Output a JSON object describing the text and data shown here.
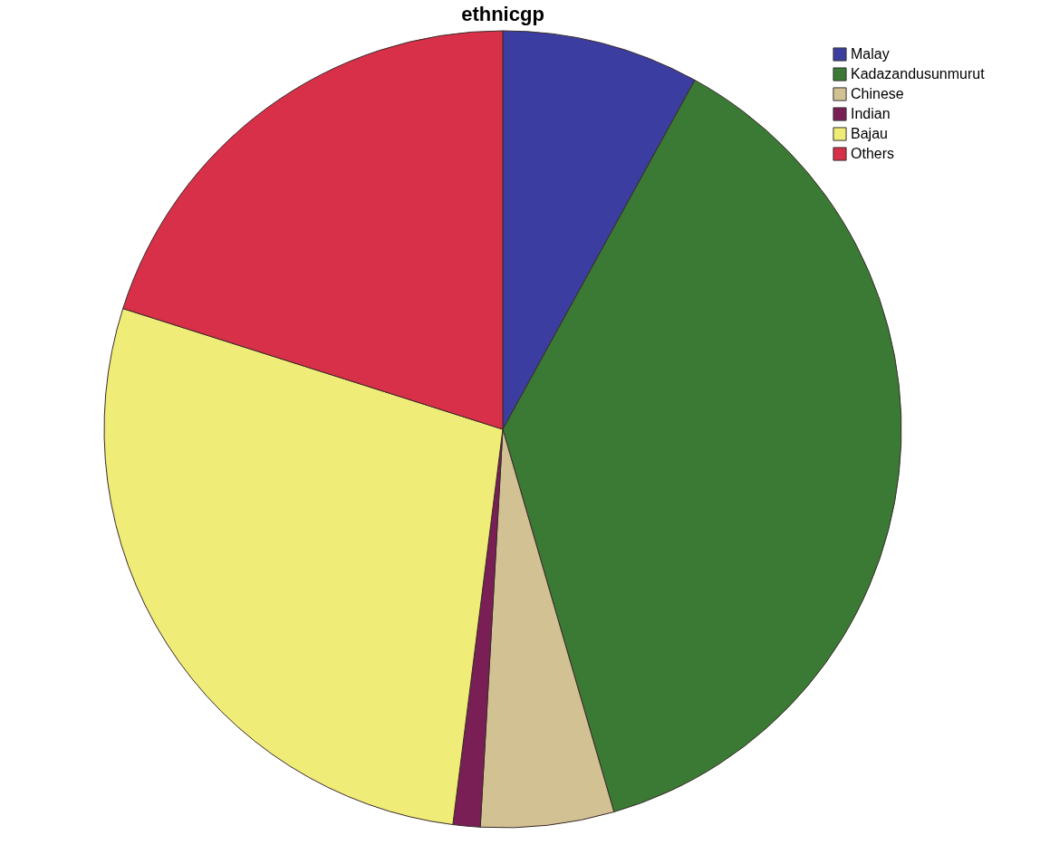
{
  "chart_data": {
    "type": "pie",
    "title": "ethnicgp",
    "categories": [
      "Malay",
      "Kadazandusunmurut",
      "Chinese",
      "Indian",
      "Bajau",
      "Others"
    ],
    "values": [
      8.0,
      37.5,
      5.4,
      1.1,
      27.9,
      20.1
    ],
    "colors": [
      "#3b3ea0",
      "#3a7a35",
      "#d2c193",
      "#7a1f55",
      "#f0ec78",
      "#d83048"
    ],
    "legend": "top right"
  }
}
